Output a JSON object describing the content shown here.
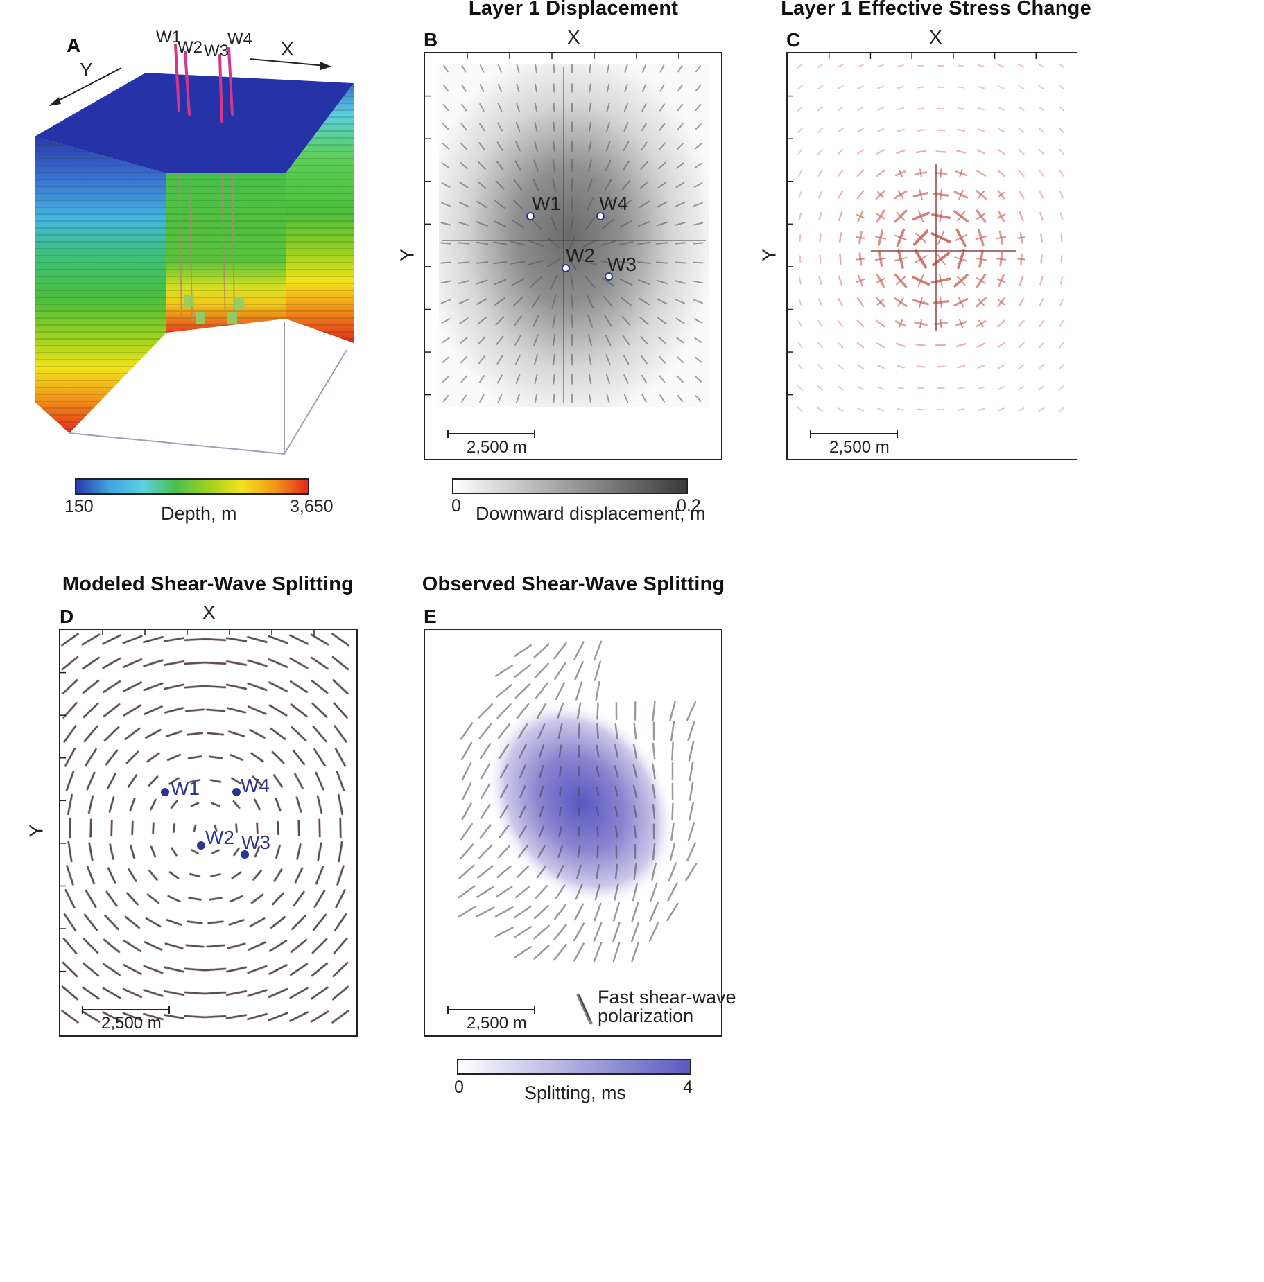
{
  "panel_a": {
    "letter": "A",
    "axis_x": "X",
    "axis_y": "Y",
    "wells": [
      "W1",
      "W2",
      "W3",
      "W4"
    ],
    "colorbar": {
      "min": "150",
      "max": "3,650",
      "label": "Depth, m",
      "colors": [
        "#2b3aa8",
        "#3fa4e0",
        "#5dd0e0",
        "#4cc04c",
        "#9ed21e",
        "#f2e21a",
        "#f29a18",
        "#e6281c"
      ]
    }
  },
  "panel_b": {
    "letter": "B",
    "title": "Layer 1 Displacement",
    "axis_x": "X",
    "axis_y": "Y",
    "wells": [
      "W1",
      "W4",
      "W2",
      "W3"
    ],
    "scale": "2,500 m",
    "colorbar": {
      "min": "0",
      "max": "0.2",
      "label": "Downward displacement, m",
      "colors": [
        "#ffffff",
        "#3a3a3a"
      ]
    }
  },
  "panel_c": {
    "letter": "C",
    "title": "Layer 1 Effective Stress Change",
    "axis_x": "X",
    "axis_y": "Y",
    "scale": "2,500 m",
    "tick_color": "#c8625a"
  },
  "panel_d": {
    "letter": "D",
    "title": "Modeled Shear-Wave Splitting",
    "axis_x": "X",
    "axis_y": "Y",
    "wells": [
      "W1",
      "W4",
      "W2",
      "W3"
    ],
    "scale": "2,500 m",
    "well_color": "#2b3590"
  },
  "panel_e": {
    "letter": "E",
    "title": "Observed Shear-Wave Splitting",
    "scale": "2,500 m",
    "legend": {
      "line1": "Fast shear-wave",
      "line2": "polarization"
    },
    "colorbar": {
      "min": "0",
      "max": "4",
      "label": "Splitting, ms",
      "colors": [
        "#ffffff",
        "#5a5ac0"
      ]
    }
  }
}
